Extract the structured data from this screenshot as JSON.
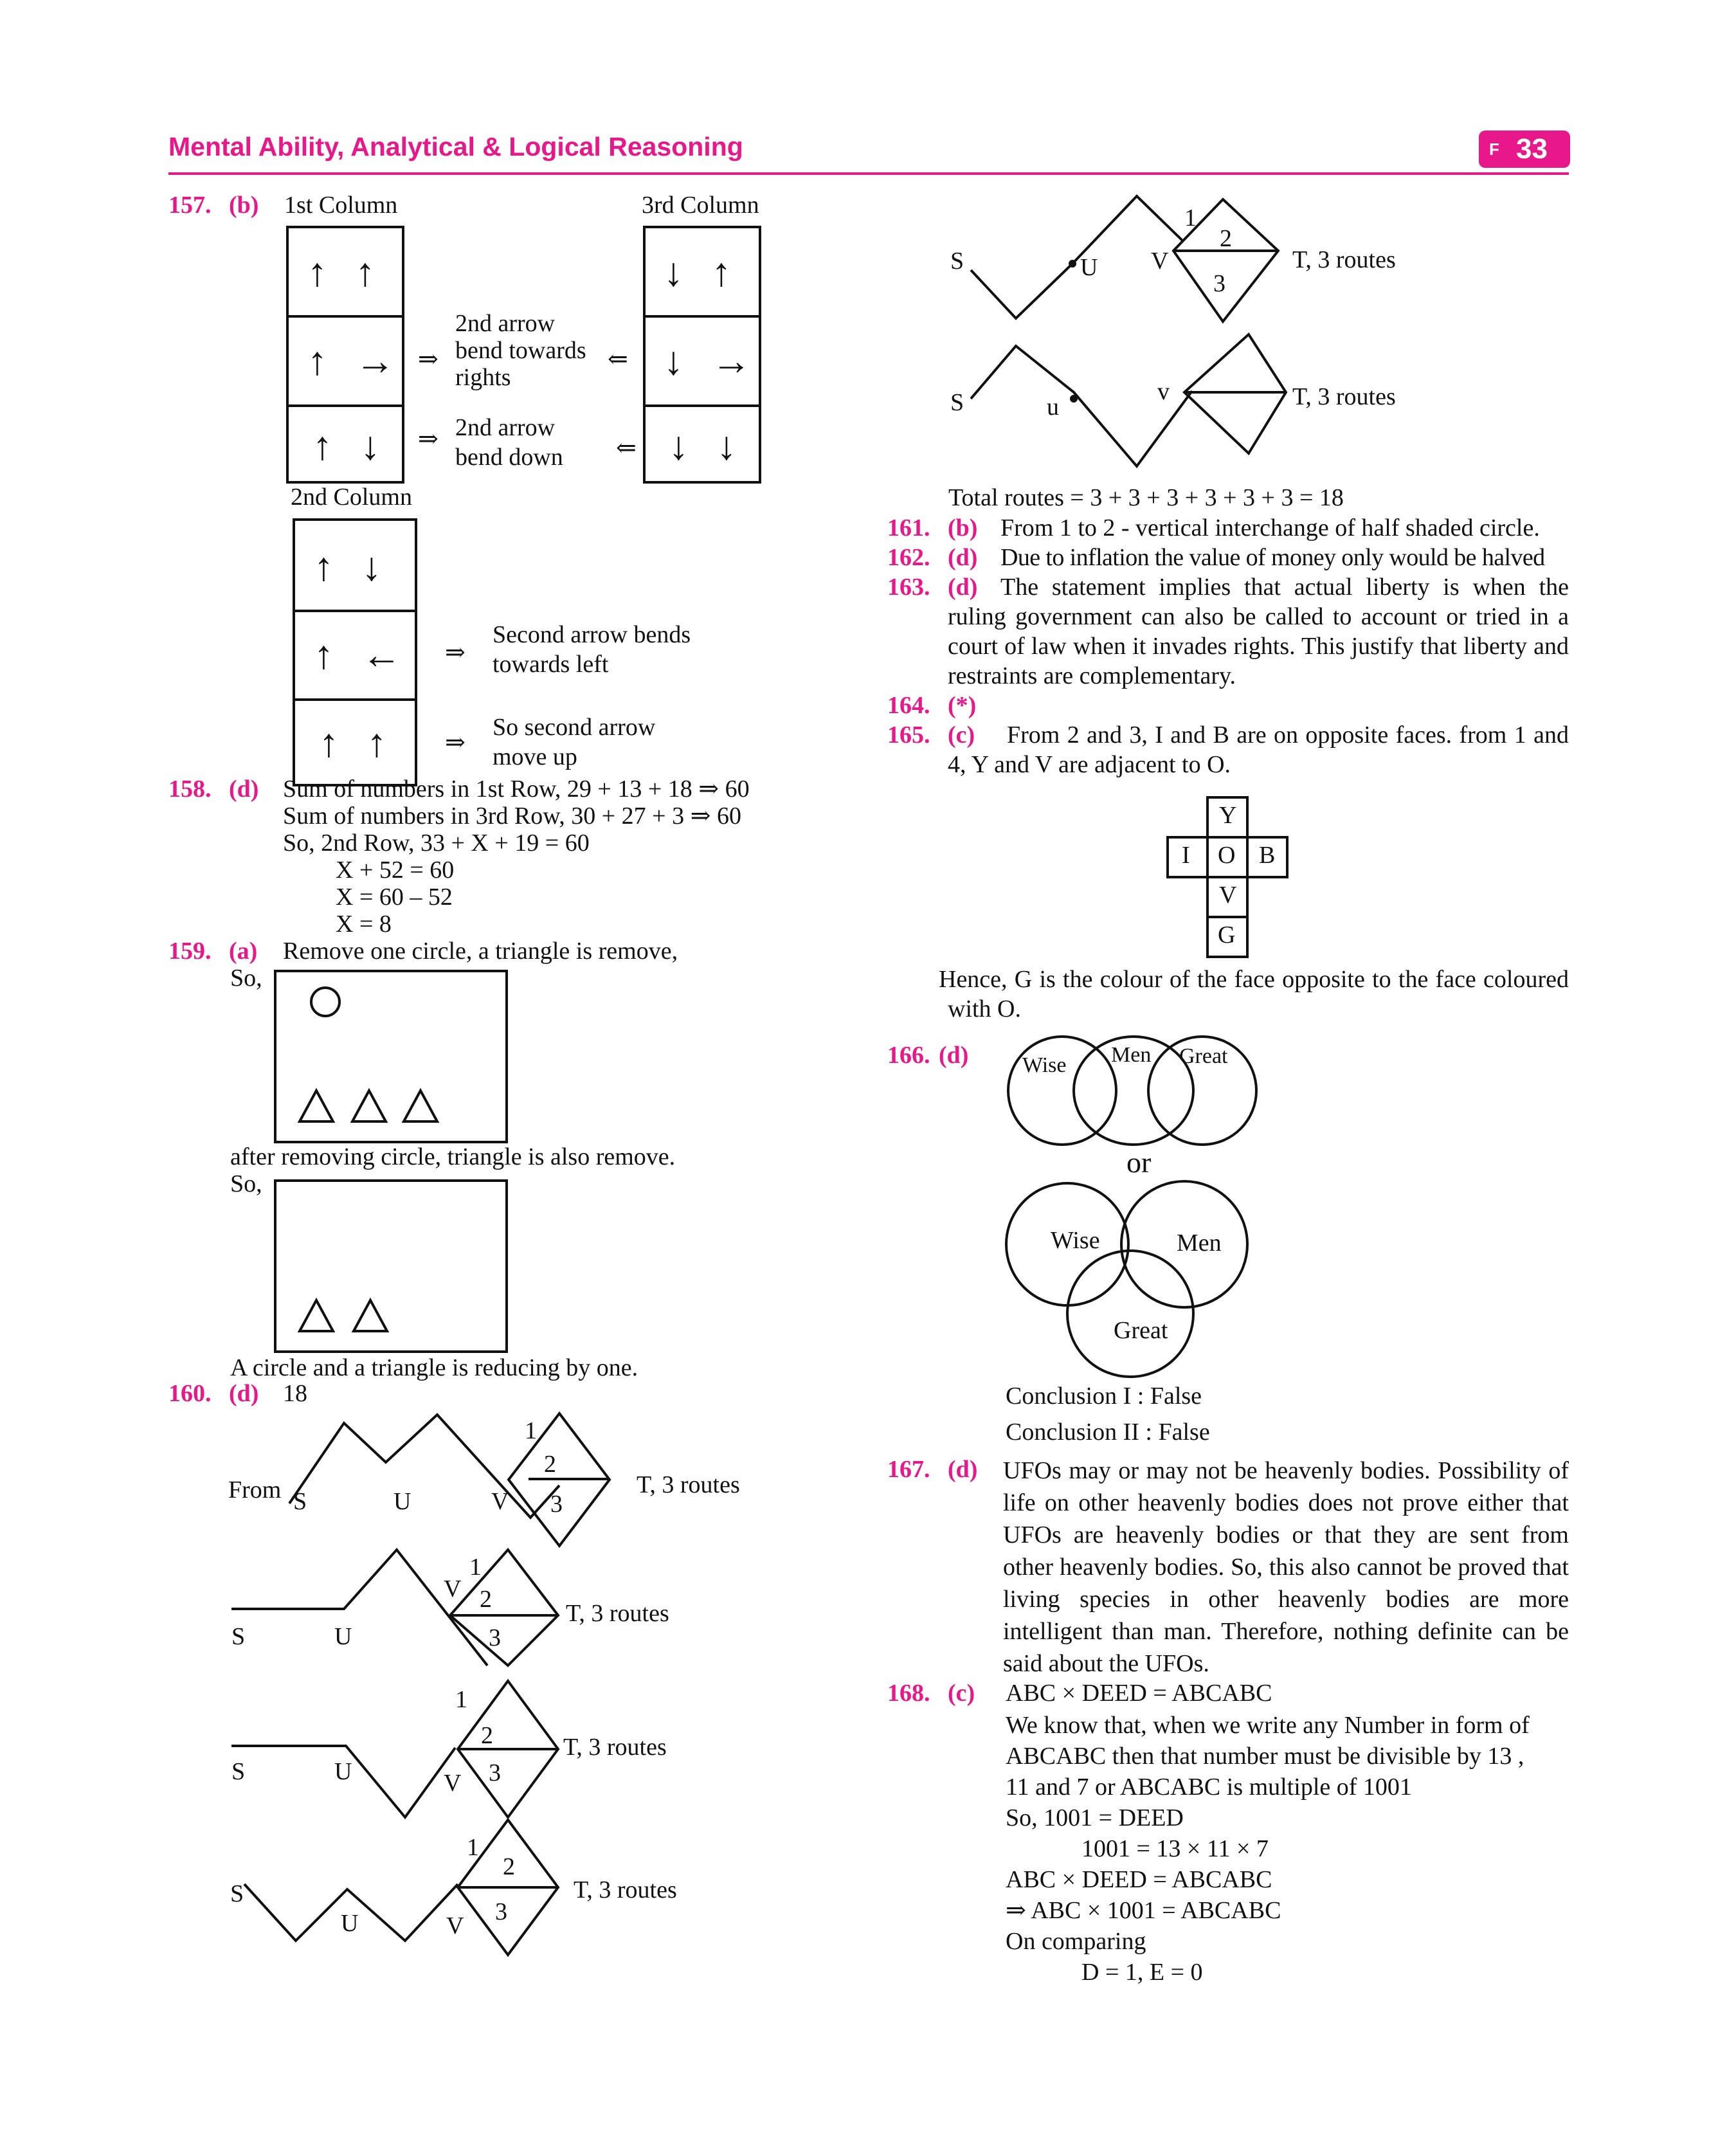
{
  "header": {
    "title": "Mental Ability, Analytical & Logical Reasoning",
    "badge_letter": "F",
    "page_number": "33"
  },
  "q157": {
    "num": "157.",
    "ans": "(b)",
    "col1": "1st Column",
    "col3": "3rd Column",
    "col2": "2nd Column",
    "arrows": "⇒",
    "arrows_l": "⇐",
    "c1r1": "↑ ↑",
    "c1r2": "↑ →",
    "c1r3": "↑ ↓",
    "c3r1": "↓ ↑",
    "c3r2": "↓ →",
    "c3r3": "↓ ↓",
    "c2r1": "↑ ↓",
    "c2r2": "↑ ←",
    "c2r3": "↑ ↑",
    "n1a": "2nd arrow",
    "n1b": "bend towards",
    "n1c": "rights",
    "n2a": "2nd arrow",
    "n2b": "bend down",
    "n3a": "Second arrow bends",
    "n3b": "towards left",
    "n4a": "So second arrow",
    "n4b": "move up"
  },
  "q158": {
    "num": "158.",
    "ans": "(d)",
    "l1": "Sum of numbers in 1st Row, 29 + 13 + 18 ⇒ 60",
    "l2": "Sum of numbers in 3rd Row, 30 + 27 + 3 ⇒ 60",
    "l3": "So, 2nd Row, 33 + X + 19 = 60",
    "l4": "X + 52 = 60",
    "l5": "X = 60 – 52",
    "l6": "X = 8"
  },
  "q159": {
    "num": "159.",
    "ans": "(a)",
    "l1": "Remove one circle, a triangle is remove,",
    "so1": "So,",
    "l2": "after removing circle, triangle is also remove.",
    "so2": "So,",
    "l3": "A circle and a triangle is reducing by one.",
    "shapes": {
      "box1": {
        "circles": 1,
        "triangles": 3
      },
      "box2": {
        "circles": 0,
        "triangles": 2
      }
    }
  },
  "q160": {
    "num": "160.",
    "ans": "(d)",
    "val": "18",
    "from": "From",
    "S": "S",
    "U": "U",
    "V": "V",
    "u": "u",
    "v": "v",
    "n1": "1",
    "n2": "2",
    "n3": "3",
    "routes": "T, 3 routes",
    "total": "Total routes = 3 + 3 + 3 + 3 + 3 + 3 = 18"
  },
  "q161": {
    "num": "161.",
    "ans": "(b)",
    "text": "From 1 to 2 - vertical interchange of half shaded circle."
  },
  "q162": {
    "num": "162.",
    "ans": "(d)",
    "text": "Due to inflation the value of money only would be halved"
  },
  "q163": {
    "num": "163.",
    "ans": "(d)",
    "text": "The statement implies that actual liberty is when the ruling government can also be called to account or tried in a court of law when it invades rights. This justify that liberty and restraints are complementary."
  },
  "q164": {
    "num": "164.",
    "ans": "(*)"
  },
  "q165": {
    "num": "165.",
    "ans": "(c)",
    "text": "From 2 and 3, I and B are on opposite faces. from 1 and 4, Y and V are adjacent to O.",
    "net": {
      "top": "Y",
      "left": "I",
      "center": "O",
      "right": "B",
      "b1": "V",
      "b2": "G"
    },
    "conclusion": "Hence, G is the colour of the face opposite to the face coloured with O."
  },
  "q166": {
    "num": "166.",
    "ans": "(d)",
    "wise": "Wise",
    "men": "Men",
    "great": "Great",
    "or": "or",
    "c1": "Conclusion I : False",
    "c2": "Conclusion II : False"
  },
  "q167": {
    "num": "167.",
    "ans": "(d)",
    "text": "UFOs may or may not be heavenly bodies. Possibility of life on other heavenly bodies does not prove either that UFOs are heavenly bodies or that they are sent from other heavenly bodies. So, this also cannot be proved that living species in other heavenly bodies are more intelligent than man. Therefore, nothing definite can be said about the UFOs."
  },
  "q168": {
    "num": "168.",
    "ans": "(c)",
    "l1": "ABC × DEED = ABCABC",
    "l2": "We know that, when we write any Number in form of",
    "l3": "ABCABC then that number must be divisible by 13 ,",
    "l4": "11 and 7 or ABCABC is multiple of 1001",
    "l5": "So, 1001 = DEED",
    "l6": "1001 = 13 × 11 × 7",
    "l7": "ABC × DEED = ABCABC",
    "l8": "⇒ ABC × 1001 = ABCABC",
    "l9": "On comparing",
    "l10": "D = 1, E = 0"
  }
}
